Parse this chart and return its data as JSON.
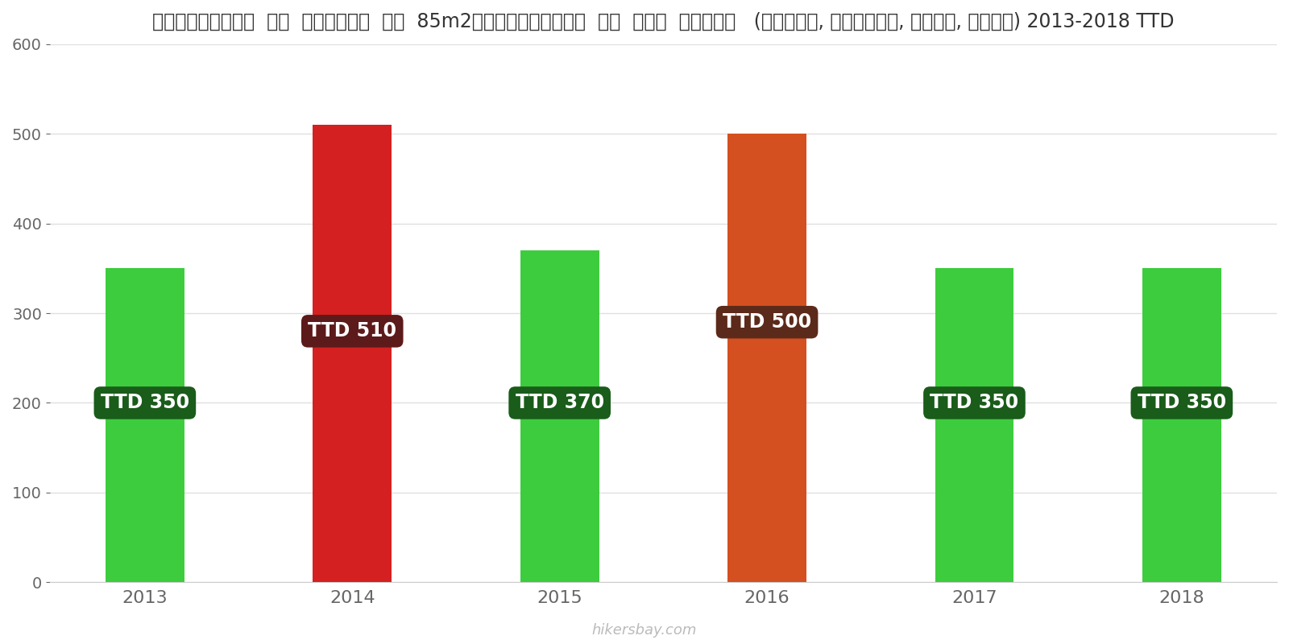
{
  "years": [
    2013,
    2014,
    2015,
    2016,
    2017,
    2018
  ],
  "values": [
    350,
    510,
    370,
    500,
    350,
    350
  ],
  "colors": [
    "#3dcc3d",
    "#d42020",
    "#3dcc3d",
    "#d45020",
    "#3dcc3d",
    "#3dcc3d"
  ],
  "label_bg_colors": [
    "#1a5c1a",
    "#5c1a1a",
    "#1a5c1a",
    "#5c2a1a",
    "#1a5c1a",
    "#1a5c1a"
  ],
  "label_y_values": [
    200,
    280,
    200,
    290,
    200,
    200
  ],
  "title": "त्रिनिदाद  और  टोबैगो  एक  85m2अपार्टमेंट  के  लिए  शुल्क   (बिजली, हीटिंग, पानी, कचरा) 2013-2018 TTD",
  "ylim": [
    0,
    600
  ],
  "yticks": [
    0,
    100,
    200,
    300,
    400,
    500,
    600
  ],
  "watermark": "hikersbay.com",
  "background_color": "#ffffff",
  "grid_color": "#e0e0e0",
  "bar_width": 0.38
}
